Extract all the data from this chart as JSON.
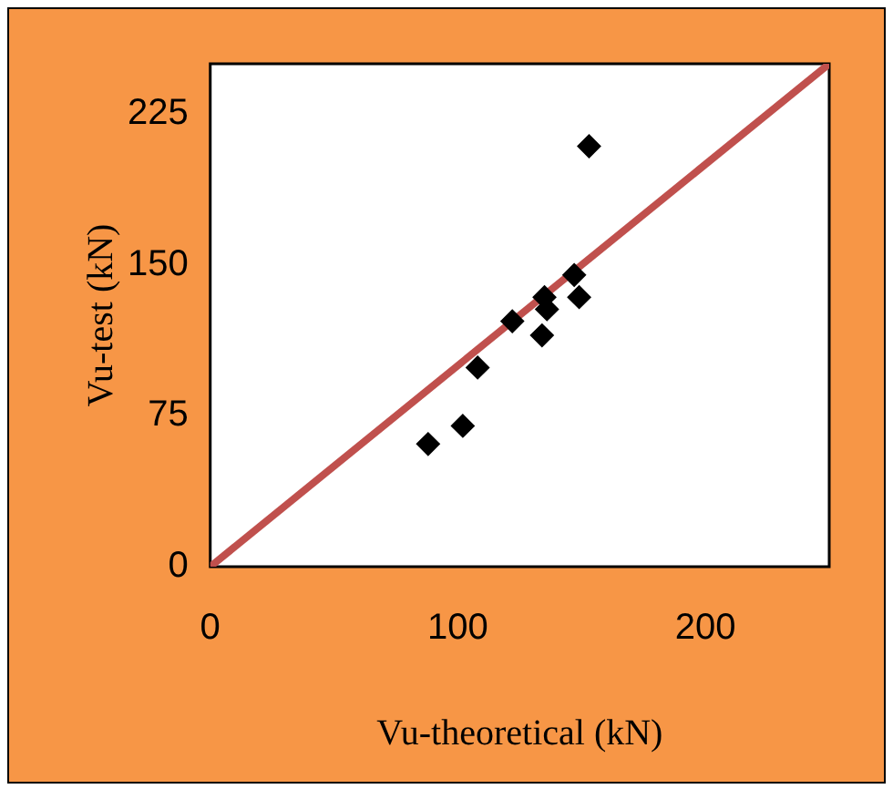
{
  "chart_data": {
    "type": "scatter",
    "xlabel": "Vu-theoretical (kN)",
    "ylabel": "Vu-test (kN)",
    "marker": "diamond",
    "grid": false,
    "legend": false,
    "xlim": [
      0,
      250
    ],
    "xticks": [
      0,
      100,
      200
    ],
    "ylim": [
      0,
      250
    ],
    "yticks": [
      0,
      75,
      150,
      225
    ],
    "series": [
      {
        "color": "#000000",
        "x": [
          88,
          102,
          108,
          122,
          134,
          135,
          136,
          147,
          149,
          153
        ],
        "values": [
          61,
          70,
          99,
          122,
          115,
          134,
          128,
          145,
          134,
          209
        ]
      },
      {
        "type": "line",
        "color": "#c0504d",
        "marker": "none",
        "x": [
          0,
          250
        ],
        "values": [
          0,
          250
        ]
      }
    ]
  }
}
